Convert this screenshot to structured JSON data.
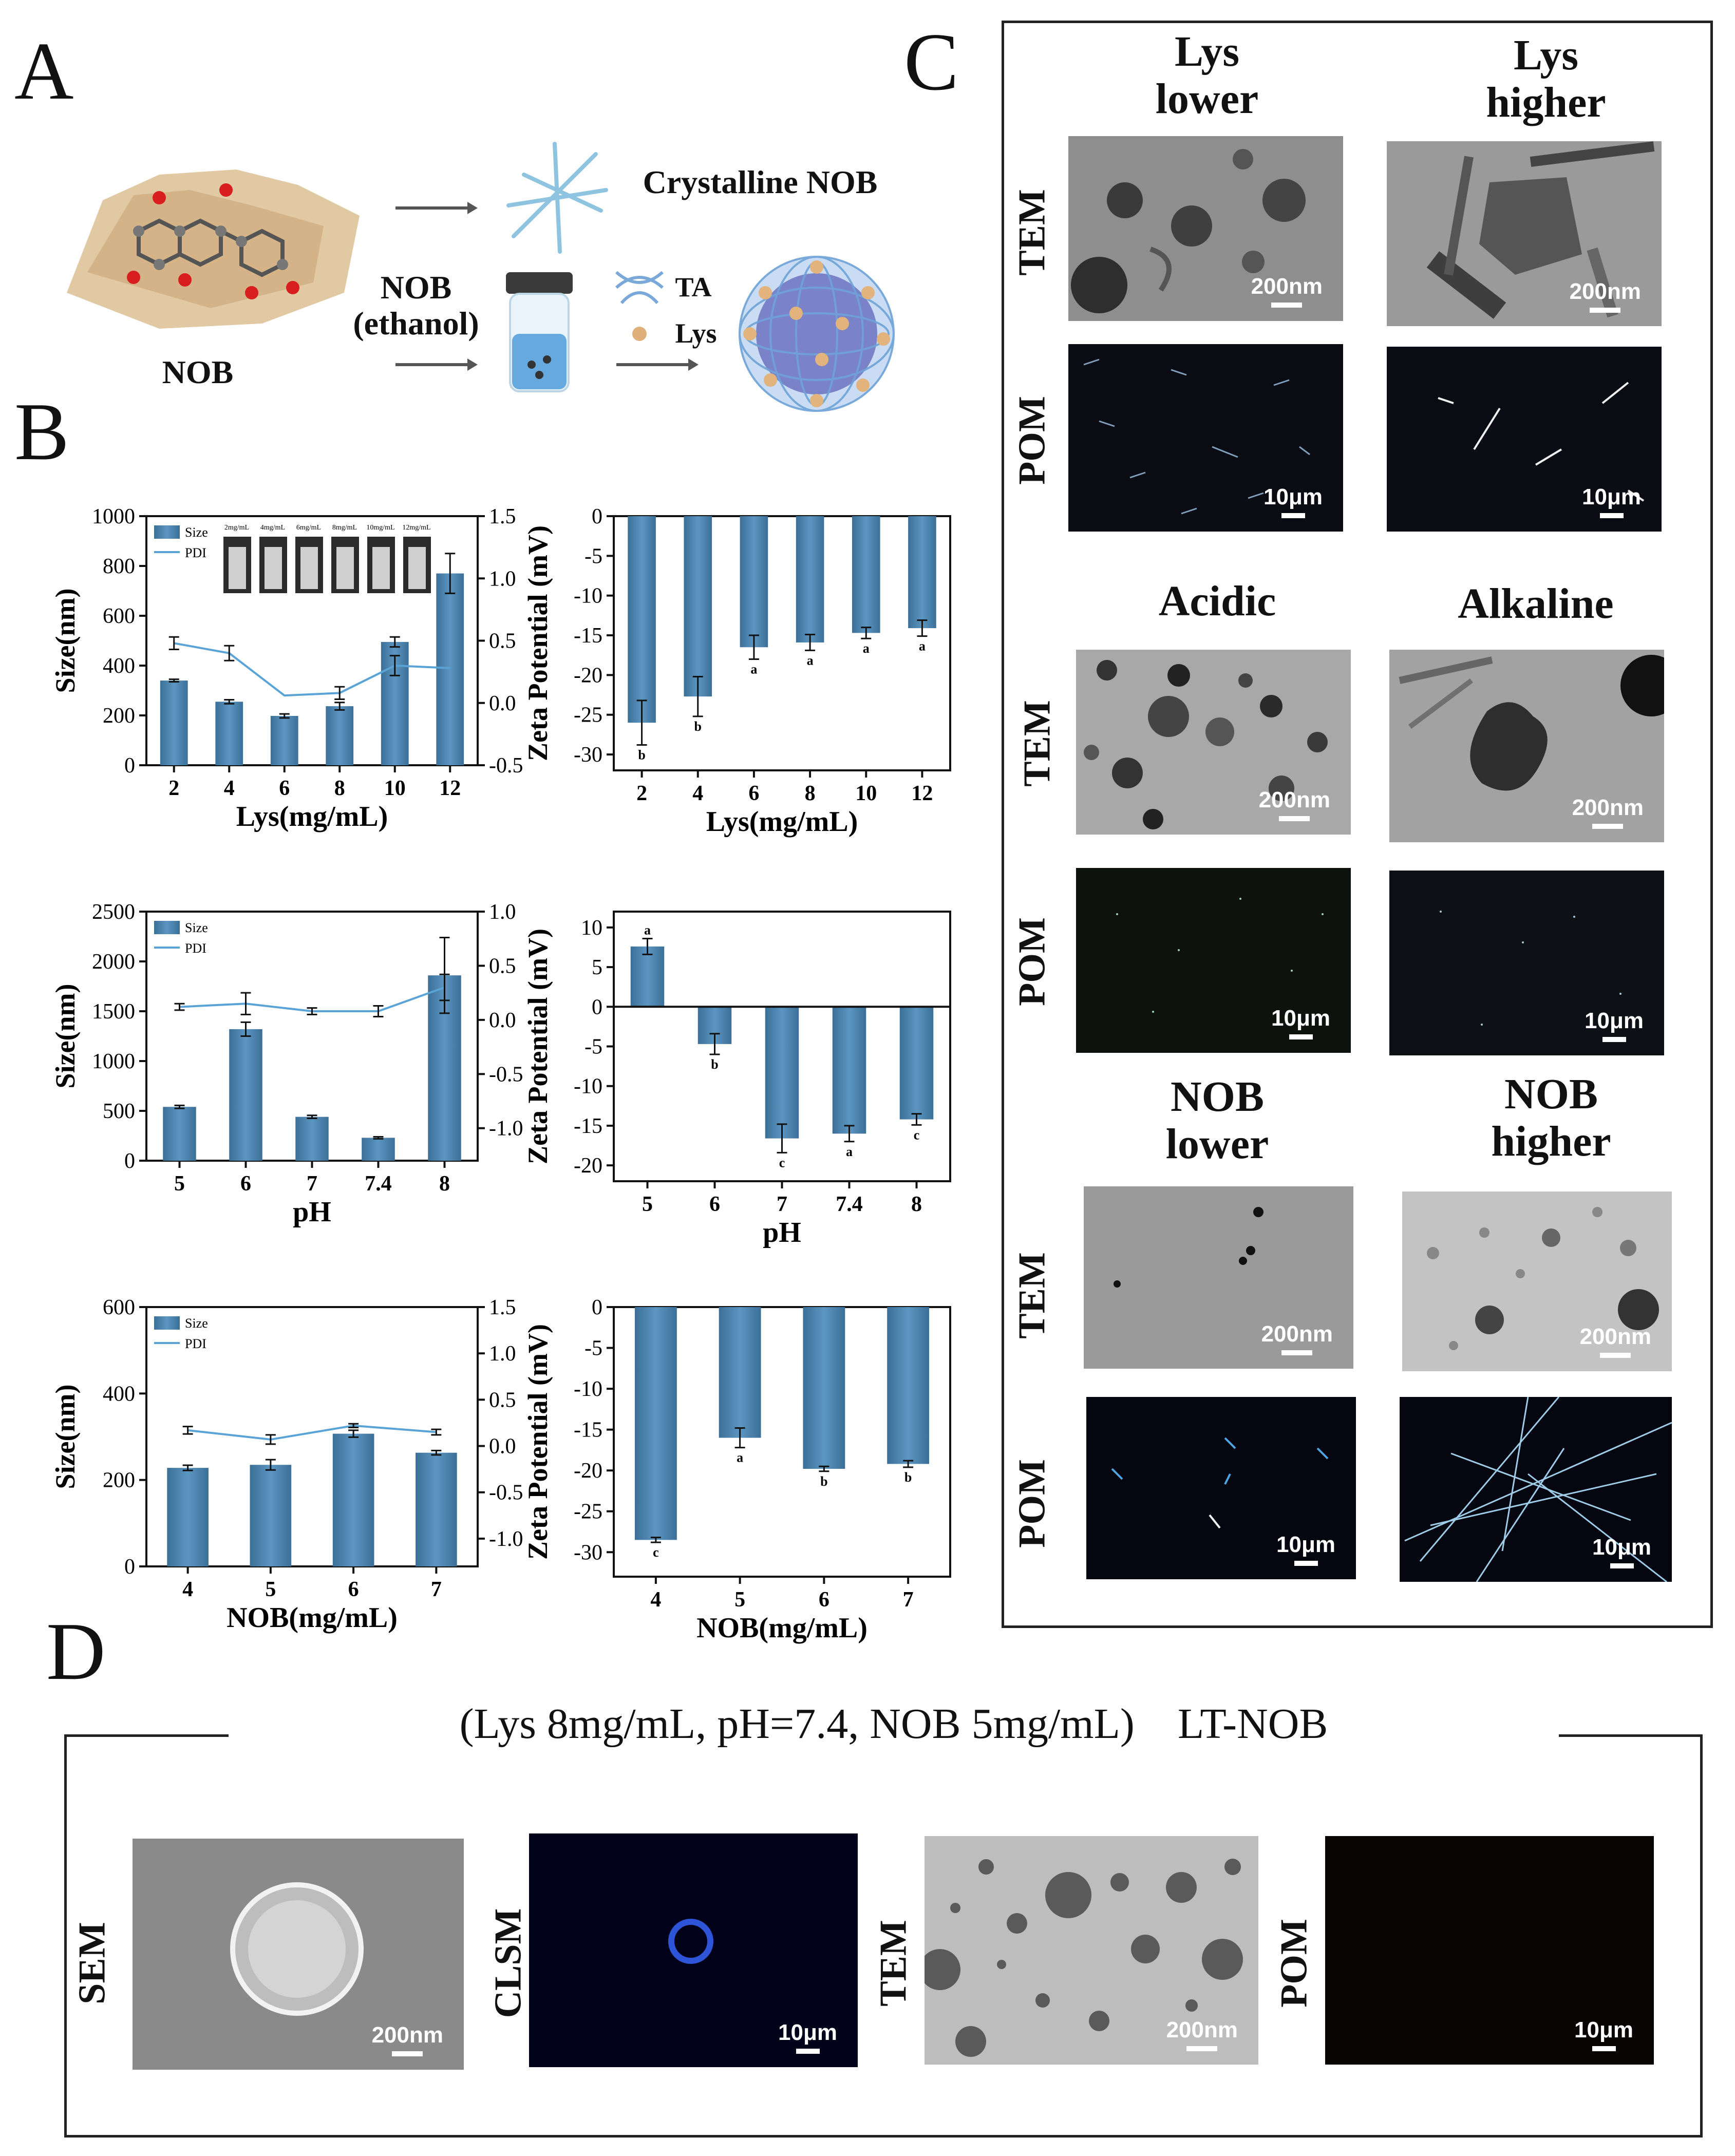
{
  "panels": {
    "A": {
      "letter": "A",
      "nob_label": "NOB",
      "solution_label_1": "NOB",
      "solution_label_2": "(ethanol)",
      "crystal_label": "Crystalline NOB",
      "legend_ta": "TA",
      "legend_lys": "Lys"
    },
    "B": {
      "letter": "B"
    },
    "C": {
      "letter": "C",
      "groups": [
        {
          "left_title": [
            "Lys",
            "lower"
          ],
          "right_title": [
            "Lys",
            "higher"
          ]
        },
        {
          "left_title": [
            "Acidic"
          ],
          "right_title": [
            "Alkaline"
          ]
        },
        {
          "left_title": [
            "NOB",
            "lower"
          ],
          "right_title": [
            "NOB",
            "higher"
          ]
        }
      ],
      "row_labels": {
        "tem": "TEM",
        "pom": "POM"
      },
      "scale_tem": "200nm",
      "scale_pom": "10μm"
    },
    "D": {
      "letter": "D",
      "caption": "(Lys 8mg/mL, pH=7.4, NOB 5mg/mL)    LT-NOB",
      "labels": [
        "SEM",
        "CLSM",
        "TEM",
        "POM"
      ],
      "scales": [
        "200nm",
        "10μm",
        "200nm",
        "10μm"
      ]
    }
  },
  "inset_labels": [
    "2mg/mL",
    "4mg/mL",
    "6mg/mL",
    "8mg/mL",
    "10mg/mL",
    "12mg/mL"
  ],
  "colors": {
    "bar": "#5b96c2",
    "bar_dark": "#3c6f96",
    "line": "#5aa3d6",
    "micro_dark": "#0b0b14",
    "micro_tem": "#8c8c8c"
  },
  "chart_data": [
    {
      "type": "bar",
      "categories": [
        "2",
        "4",
        "6",
        "8",
        "10",
        "12"
      ],
      "series": [
        {
          "name": "Size",
          "values": [
            340,
            255,
            198,
            237,
            495,
            770
          ],
          "errors": [
            5,
            8,
            8,
            15,
            20,
            80
          ]
        },
        {
          "name": "PDI",
          "type": "line",
          "axis": "right",
          "values": [
            0.48,
            0.4,
            0.06,
            0.08,
            0.3,
            0.28
          ],
          "errors": [
            0.05,
            0.06,
            0,
            0.05,
            0.08,
            0
          ]
        }
      ],
      "xlabel": "Lys(mg/mL)",
      "ylabel": "Size(nm)",
      "y2label": "PDI",
      "ylim": [
        0,
        1000
      ],
      "yticks": [
        0,
        200,
        400,
        600,
        800,
        1000
      ],
      "y2lim": [
        -0.5,
        1.5
      ],
      "y2ticks": [
        "-0.5",
        "0.0",
        "0.5",
        "1.0",
        "1.5"
      ],
      "legend_position": "top-left"
    },
    {
      "type": "bar",
      "categories": [
        "2",
        "4",
        "6",
        "8",
        "10",
        "12"
      ],
      "series": [
        {
          "values": [
            -26,
            -22.7,
            -16.5,
            -15.9,
            -14.7,
            -14.1
          ],
          "errors": [
            2.8,
            2.5,
            1.5,
            1,
            0.7,
            1
          ],
          "letters": [
            "b",
            "b",
            "a",
            "a",
            "a",
            "a"
          ]
        }
      ],
      "xlabel": "Lys(mg/mL)",
      "ylabel": "Zeta Potential (mV)",
      "ylim": [
        -32,
        0
      ],
      "yticks": [
        0,
        -5,
        -10,
        -15,
        -20,
        -25,
        -30
      ]
    },
    {
      "type": "bar",
      "categories": [
        "5",
        "6",
        "7",
        "7.4",
        "8"
      ],
      "series": [
        {
          "name": "Size",
          "values": [
            540,
            1320,
            440,
            230,
            1860
          ],
          "errors": [
            15,
            70,
            15,
            10,
            380
          ]
        },
        {
          "name": "PDI",
          "type": "line",
          "axis": "right",
          "values": [
            0.12,
            0.15,
            0.08,
            0.08,
            0.3
          ],
          "errors": [
            0.03,
            0.1,
            0.03,
            0.05,
            0.12
          ]
        }
      ],
      "xlabel": "pH",
      "ylabel": "Size(nm)",
      "y2label": "PDI",
      "ylim": [
        0,
        2500
      ],
      "yticks": [
        0,
        500,
        1000,
        1500,
        2000,
        2500
      ],
      "y2lim": [
        -1.3,
        1.0
      ],
      "y2ticks": [
        "-1.0",
        "-0.5",
        "0.0",
        "0.5",
        "1.0"
      ],
      "legend_position": "top-left"
    },
    {
      "type": "bar",
      "categories": [
        "5",
        "6",
        "7",
        "7.4",
        "8"
      ],
      "series": [
        {
          "values": [
            7.6,
            -4.7,
            -16.6,
            -16,
            -14.2
          ],
          "errors": [
            1,
            1.3,
            1.8,
            1,
            0.7
          ],
          "letters": [
            "a",
            "b",
            "c",
            "a",
            "c"
          ]
        }
      ],
      "xlabel": "pH",
      "ylabel": "Zeta Potential (mV)",
      "ylim": [
        -22,
        12
      ],
      "yticks": [
        10,
        5,
        0,
        -5,
        -10,
        -15,
        -20
      ]
    },
    {
      "type": "bar",
      "categories": [
        "4",
        "5",
        "6",
        "7"
      ],
      "series": [
        {
          "name": "Size",
          "values": [
            228,
            235,
            307,
            263
          ],
          "errors": [
            6,
            12,
            8,
            5
          ]
        },
        {
          "name": "PDI",
          "type": "line",
          "axis": "right",
          "values": [
            0.17,
            0.07,
            0.22,
            0.15
          ],
          "errors": [
            0.04,
            0.05,
            0.02,
            0.03
          ]
        }
      ],
      "xlabel": "NOB(mg/mL)",
      "ylabel": "Size(nm)",
      "y2label": "PDI",
      "ylim": [
        0,
        600
      ],
      "yticks": [
        0,
        200,
        400,
        600
      ],
      "y2lim": [
        -1.3,
        1.5
      ],
      "y2ticks": [
        "-1.0",
        "-0.5",
        "0.0",
        "0.5",
        "1.0",
        "1.5"
      ],
      "legend_position": "top-left"
    },
    {
      "type": "bar",
      "categories": [
        "4",
        "5",
        "6",
        "7"
      ],
      "series": [
        {
          "values": [
            -28.5,
            -16,
            -19.8,
            -19.2
          ],
          "errors": [
            0.3,
            1.2,
            0.3,
            0.4
          ],
          "letters": [
            "c",
            "a",
            "b",
            "b"
          ]
        }
      ],
      "xlabel": "NOB(mg/mL)",
      "ylabel": "Zeta Potential (mV)",
      "ylim": [
        -33,
        0
      ],
      "yticks": [
        0,
        -5,
        -10,
        -15,
        -20,
        -25,
        -30
      ]
    }
  ]
}
